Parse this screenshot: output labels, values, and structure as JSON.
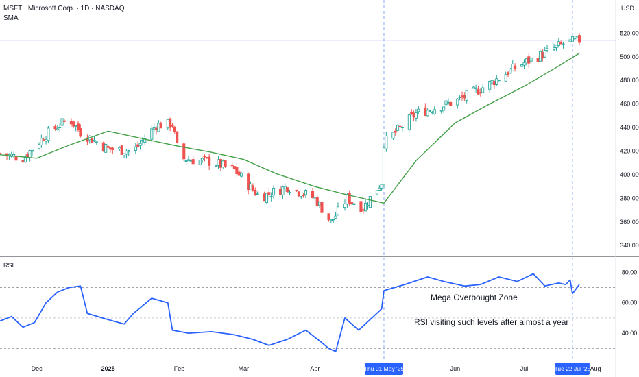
{
  "header": {
    "symbol_line": "MSFT · Microsoft Corp. · 1D · NASDAQ",
    "indicator": "SMA",
    "currency": "USD"
  },
  "rsi_pane": {
    "label": "RSI"
  },
  "annotations": {
    "zone_title": "Mega Overbought Zone",
    "zone_note": "RSI visiting such levels after almost a year"
  },
  "markers": [
    {
      "label": "Thu 01 May '25"
    },
    {
      "label": "Tue 22 Jul '25"
    }
  ],
  "colors": {
    "up": "#26a69a",
    "down": "#ef5350",
    "sma": "#43a047",
    "rsi": "#2962ff",
    "price_line": "#b0bcf5",
    "marker": "#2962ff"
  },
  "chart_data": [
    {
      "type": "candlestick",
      "title": "MSFT · Microsoft Corp. · 1D · NASDAQ",
      "ylabel": "USD",
      "ylim": [
        332,
        533
      ],
      "y_ticks": [
        340,
        360,
        380,
        400,
        420,
        440,
        460,
        480,
        500,
        520
      ],
      "x_ticks": [
        "Dec",
        "2025",
        "Feb",
        "Mar",
        "Apr",
        "May",
        "Jun",
        "Jul",
        "Aug"
      ],
      "x_tick_dates": [
        "2024-12-01",
        "2025-01-01",
        "2025-02-01",
        "2025-03-01",
        "2025-04-01",
        "2025-05-01",
        "2025-06-01",
        "2025-07-01",
        "2025-08-01"
      ],
      "date_range": [
        "2024-11-15",
        "2025-07-25"
      ],
      "current_price_line": 514,
      "markers": [
        "2025-05-01",
        "2025-07-22"
      ],
      "sma_path": [
        [
          "2024-11-15",
          417
        ],
        [
          "2024-12-01",
          414
        ],
        [
          "2024-12-15",
          425
        ],
        [
          "2025-01-01",
          437
        ],
        [
          "2025-01-15",
          431
        ],
        [
          "2025-02-01",
          424
        ],
        [
          "2025-02-15",
          419
        ],
        [
          "2025-03-01",
          413
        ],
        [
          "2025-03-15",
          401
        ],
        [
          "2025-04-01",
          390
        ],
        [
          "2025-04-15",
          383
        ],
        [
          "2025-05-01",
          376
        ],
        [
          "2025-05-15",
          412
        ],
        [
          "2025-06-01",
          444
        ],
        [
          "2025-06-15",
          459
        ],
        [
          "2025-07-01",
          475
        ],
        [
          "2025-07-15",
          491
        ],
        [
          "2025-07-25",
          503
        ]
      ],
      "price_path": [
        [
          "2024-11-15",
          418
        ],
        [
          "2024-11-25",
          414
        ],
        [
          "2024-12-05",
          434
        ],
        [
          "2024-12-15",
          448
        ],
        [
          "2024-12-20",
          436
        ],
        [
          "2025-01-01",
          422
        ],
        [
          "2025-01-12",
          420
        ],
        [
          "2025-01-22",
          442
        ],
        [
          "2025-01-29",
          443
        ],
        [
          "2025-02-01",
          414
        ],
        [
          "2025-02-15",
          411
        ],
        [
          "2025-02-25",
          404
        ],
        [
          "2025-03-08",
          381
        ],
        [
          "2025-03-20",
          390
        ],
        [
          "2025-04-01",
          380
        ],
        [
          "2025-04-08",
          360
        ],
        [
          "2025-04-15",
          380
        ],
        [
          "2025-04-22",
          372
        ],
        [
          "2025-04-30",
          394
        ],
        [
          "2025-05-01",
          427
        ],
        [
          "2025-05-15",
          452
        ],
        [
          "2025-06-01",
          462
        ],
        [
          "2025-06-15",
          476
        ],
        [
          "2025-06-28",
          492
        ],
        [
          "2025-07-10",
          503
        ],
        [
          "2025-07-18",
          511
        ],
        [
          "2025-07-25",
          514
        ]
      ]
    },
    {
      "type": "line",
      "title": "RSI",
      "ylim": [
        27,
        86
      ],
      "y_ticks": [
        40,
        60,
        80
      ],
      "reference_lines": [
        70,
        30,
        50
      ],
      "date_range": [
        "2024-11-15",
        "2025-07-25"
      ],
      "series": [
        {
          "values": [
            [
              "2024-11-15",
              48
            ],
            [
              "2024-11-20",
              51
            ],
            [
              "2024-11-25",
              44
            ],
            [
              "2024-11-30",
              47
            ],
            [
              "2024-12-05",
              60
            ],
            [
              "2024-12-10",
              67
            ],
            [
              "2024-12-15",
              70
            ],
            [
              "2024-12-20",
              71
            ],
            [
              "2024-12-23",
              53
            ],
            [
              "2025-01-01",
              49
            ],
            [
              "2025-01-08",
              46
            ],
            [
              "2025-01-12",
              53
            ],
            [
              "2025-01-20",
              63
            ],
            [
              "2025-01-27",
              60
            ],
            [
              "2025-01-29",
              42
            ],
            [
              "2025-02-05",
              40
            ],
            [
              "2025-02-15",
              41
            ],
            [
              "2025-02-25",
              39
            ],
            [
              "2025-03-05",
              36
            ],
            [
              "2025-03-12",
              32
            ],
            [
              "2025-03-20",
              36
            ],
            [
              "2025-03-28",
              42
            ],
            [
              "2025-04-03",
              35
            ],
            [
              "2025-04-07",
              30
            ],
            [
              "2025-04-10",
              28
            ],
            [
              "2025-04-14",
              50
            ],
            [
              "2025-04-20",
              42
            ],
            [
              "2025-04-25",
              49
            ],
            [
              "2025-04-30",
              56
            ],
            [
              "2025-05-01",
              68
            ],
            [
              "2025-05-10",
              72
            ],
            [
              "2025-05-20",
              77
            ],
            [
              "2025-05-27",
              74
            ],
            [
              "2025-06-05",
              71
            ],
            [
              "2025-06-12",
              72
            ],
            [
              "2025-06-20",
              77
            ],
            [
              "2025-06-28",
              74
            ],
            [
              "2025-07-05",
              79
            ],
            [
              "2025-07-10",
              71
            ],
            [
              "2025-07-16",
              73
            ],
            [
              "2025-07-19",
              72
            ],
            [
              "2025-07-21",
              75
            ],
            [
              "2025-07-22",
              66
            ],
            [
              "2025-07-25",
              72
            ]
          ]
        }
      ]
    }
  ]
}
